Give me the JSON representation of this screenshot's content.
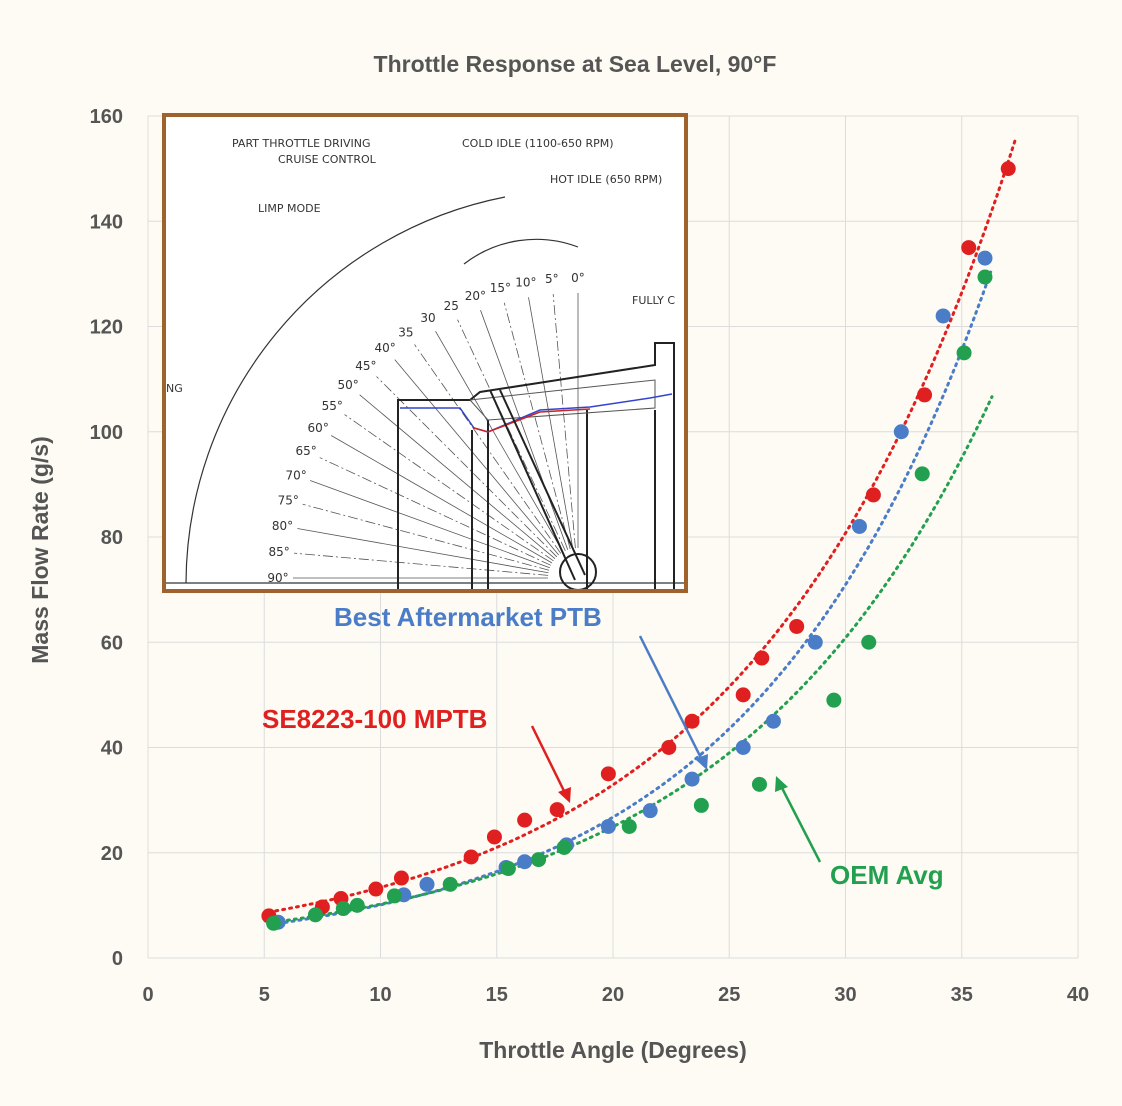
{
  "chart_data": {
    "type": "scatter",
    "title": "Throttle Response at Sea Level, 90°F",
    "xlabel": "Throttle Angle (Degrees)",
    "ylabel": "Mass Flow Rate (g/s)",
    "xlim": [
      0,
      40
    ],
    "ylim": [
      0,
      160
    ],
    "xticks": [
      0,
      5,
      10,
      15,
      20,
      25,
      30,
      35,
      40
    ],
    "yticks": [
      0,
      20,
      40,
      60,
      80,
      100,
      120,
      140,
      160
    ],
    "grid": true,
    "trendlines": "dotted",
    "series": [
      {
        "name": "SE8223-100 MPTB",
        "color": "#e02020",
        "points": [
          [
            5.2,
            8
          ],
          [
            7.5,
            9.7
          ],
          [
            8.3,
            11.3
          ],
          [
            9.8,
            13.1
          ],
          [
            10.9,
            15.2
          ],
          [
            13.9,
            19.2
          ],
          [
            14.9,
            23
          ],
          [
            16.2,
            26.2
          ],
          [
            17.6,
            28.2
          ],
          [
            19.8,
            35
          ],
          [
            22.4,
            40
          ],
          [
            23.4,
            45
          ],
          [
            25.6,
            50
          ],
          [
            26.4,
            57
          ],
          [
            27.9,
            63
          ],
          [
            33.4,
            107
          ],
          [
            31.2,
            88
          ],
          [
            35.3,
            135
          ],
          [
            37,
            150
          ]
        ]
      },
      {
        "name": "Best Aftermarket PTB",
        "color": "#4a7cc7",
        "points": [
          [
            5.6,
            6.8
          ],
          [
            11,
            12
          ],
          [
            12,
            14
          ],
          [
            15.4,
            17.2
          ],
          [
            16.2,
            18.3
          ],
          [
            18,
            21.5
          ],
          [
            19.8,
            25
          ],
          [
            21.6,
            28
          ],
          [
            23.4,
            34
          ],
          [
            25.6,
            40
          ],
          [
            26.9,
            45
          ],
          [
            28.7,
            60
          ],
          [
            30.6,
            82
          ],
          [
            32.4,
            100
          ],
          [
            34.2,
            122
          ],
          [
            36,
            133
          ]
        ]
      },
      {
        "name": "OEM Avg",
        "color": "#22a050",
        "points": [
          [
            5.4,
            6.6
          ],
          [
            7.2,
            8.2
          ],
          [
            8.4,
            9.4
          ],
          [
            9.0,
            10
          ],
          [
            10.6,
            11.8
          ],
          [
            13,
            14
          ],
          [
            15.5,
            17
          ],
          [
            16.8,
            18.7
          ],
          [
            17.9,
            21
          ],
          [
            20.7,
            25
          ],
          [
            23.8,
            29
          ],
          [
            26.3,
            33
          ],
          [
            29.5,
            49
          ],
          [
            31,
            60
          ],
          [
            33.3,
            92
          ],
          [
            35.1,
            115
          ],
          [
            36,
            129.4
          ]
        ]
      }
    ],
    "annotations": [
      "SE8223-100 MPTB",
      "Best Aftermarket PTB",
      "OEM Avg"
    ],
    "inset": {
      "labels": [
        "PART THROTTLE DRIVING",
        "CRUISE CONTROL",
        "COLD IDLE (1100-650 RPM)",
        "HOT IDLE (650 RPM)",
        "LIMP MODE",
        "FULLY C",
        "NG"
      ],
      "angle_marks": [
        "0°",
        "5°",
        "10°",
        "15°",
        "20°",
        "25",
        "30",
        "35",
        "40°",
        "45°",
        "50°",
        "55°",
        "60°",
        "65°",
        "70°",
        "75°",
        "80°",
        "85°",
        "90°"
      ]
    }
  }
}
